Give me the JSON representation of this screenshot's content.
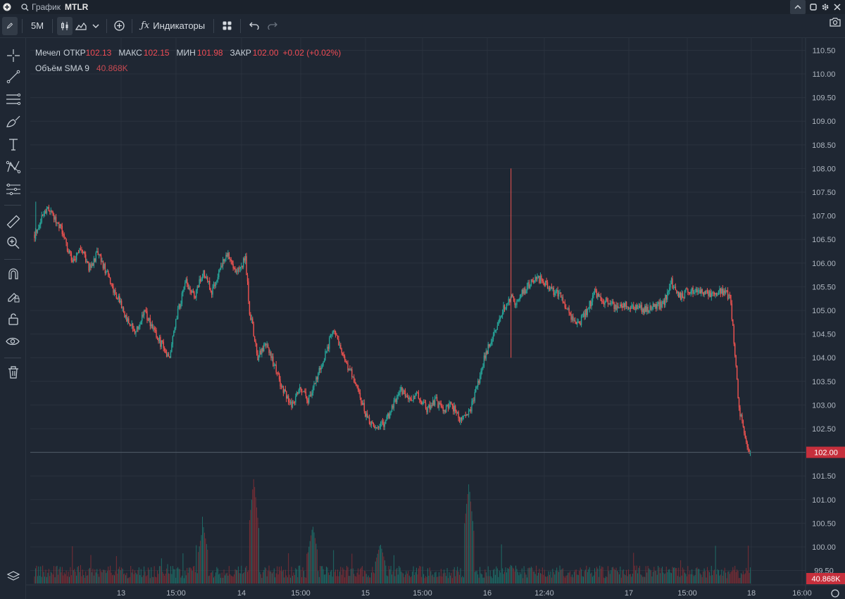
{
  "titlebar": {
    "label": "График",
    "ticker": "MTLR"
  },
  "toolbar": {
    "interval": "5M",
    "indicators_label": "Индикаторы"
  },
  "legend": {
    "series_label": "Мечел",
    "open_label": "ОТКР",
    "open": "102.13",
    "high_label": "МАКС",
    "high": "102.15",
    "low_label": "МИН",
    "low": "101.98",
    "close_label": "ЗАКР",
    "close": "102.00",
    "change": "+0.02 (+0.02%)",
    "volume_label": "Объём SMA 9",
    "volume_value": "40.868K"
  },
  "colors": {
    "up": "#26a69a",
    "down": "#ef5350",
    "background": "#1f2733",
    "grid": "#2a323e",
    "price_tag": "#c62f3c"
  },
  "chart_data": {
    "type": "candlestick",
    "y_ticks": [
      "110.50",
      "110.00",
      "109.50",
      "109.00",
      "108.50",
      "108.00",
      "107.50",
      "107.00",
      "106.50",
      "106.00",
      "105.50",
      "105.00",
      "104.50",
      "104.00",
      "103.50",
      "103.00",
      "102.50",
      "102.00",
      "101.50",
      "101.00",
      "100.50",
      "100.00",
      "99.50"
    ],
    "x_ticks": [
      "13",
      "15:00",
      "14",
      "15:00",
      "15",
      "15:00",
      "16",
      "12:40",
      "17",
      "15:00",
      "18",
      "16:00"
    ],
    "ylim": [
      99.3,
      110.7
    ],
    "last_price": "102.00",
    "last_volume": "40.868K",
    "price_path": [
      [
        0,
        106.6
      ],
      [
        3,
        107.2
      ],
      [
        6,
        106.8
      ],
      [
        9,
        106.0
      ],
      [
        11,
        106.3
      ],
      [
        13,
        105.9
      ],
      [
        15,
        106.2
      ],
      [
        17,
        105.8
      ],
      [
        20,
        105.2
      ],
      [
        22,
        104.8
      ],
      [
        24,
        104.5
      ],
      [
        26,
        105.0
      ],
      [
        28,
        104.6
      ],
      [
        30,
        104.3
      ],
      [
        32,
        104.0
      ],
      [
        34,
        105.0
      ],
      [
        36,
        105.6
      ],
      [
        38,
        105.3
      ],
      [
        40,
        105.8
      ],
      [
        42,
        105.4
      ],
      [
        44,
        105.9
      ],
      [
        46,
        106.2
      ],
      [
        48,
        105.8
      ],
      [
        50,
        106.1
      ],
      [
        51,
        105.0
      ],
      [
        53,
        104.0
      ],
      [
        55,
        104.3
      ],
      [
        57,
        103.8
      ],
      [
        59,
        103.3
      ],
      [
        61,
        103.0
      ],
      [
        63,
        103.4
      ],
      [
        65,
        103.1
      ],
      [
        67,
        103.6
      ],
      [
        69,
        104.1
      ],
      [
        71,
        104.6
      ],
      [
        73,
        104.0
      ],
      [
        75,
        103.7
      ],
      [
        77,
        103.2
      ],
      [
        79,
        102.7
      ],
      [
        81,
        102.5
      ],
      [
        83,
        102.6
      ],
      [
        85,
        103.0
      ],
      [
        87,
        103.3
      ],
      [
        89,
        103.1
      ],
      [
        91,
        103.2
      ],
      [
        93,
        102.9
      ],
      [
        95,
        103.1
      ],
      [
        97,
        102.9
      ],
      [
        99,
        103.0
      ],
      [
        101,
        102.7
      ],
      [
        103,
        102.8
      ],
      [
        105,
        103.4
      ],
      [
        107,
        104.1
      ],
      [
        109,
        104.5
      ],
      [
        111,
        105.0
      ],
      [
        113,
        105.3
      ],
      [
        114,
        105.1
      ],
      [
        115,
        105.3
      ],
      [
        117,
        105.5
      ],
      [
        119,
        105.7
      ],
      [
        121,
        105.6
      ],
      [
        123,
        105.4
      ],
      [
        125,
        105.3
      ],
      [
        127,
        104.9
      ],
      [
        129,
        104.7
      ],
      [
        131,
        105.0
      ],
      [
        133,
        105.4
      ],
      [
        135,
        105.2
      ],
      [
        137,
        105.1
      ],
      [
        139,
        105.1
      ],
      [
        141,
        105.1
      ],
      [
        143,
        105.1
      ],
      [
        145,
        105.0
      ],
      [
        147,
        105.1
      ],
      [
        149,
        105.1
      ],
      [
        151,
        105.6
      ],
      [
        153,
        105.3
      ],
      [
        155,
        105.4
      ],
      [
        157,
        105.4
      ],
      [
        159,
        105.4
      ],
      [
        161,
        105.3
      ],
      [
        163,
        105.4
      ],
      [
        165,
        105.3
      ],
      [
        166,
        104.2
      ],
      [
        167,
        103.0
      ],
      [
        168,
        102.5
      ],
      [
        169,
        102.1
      ],
      [
        170,
        102.0
      ]
    ],
    "volume_spikes": [
      [
        40,
        0.55
      ],
      [
        52,
        1.0
      ],
      [
        66,
        0.55
      ],
      [
        82,
        0.38
      ],
      [
        103,
        0.95
      ],
      [
        113,
        0.18
      ]
    ]
  }
}
